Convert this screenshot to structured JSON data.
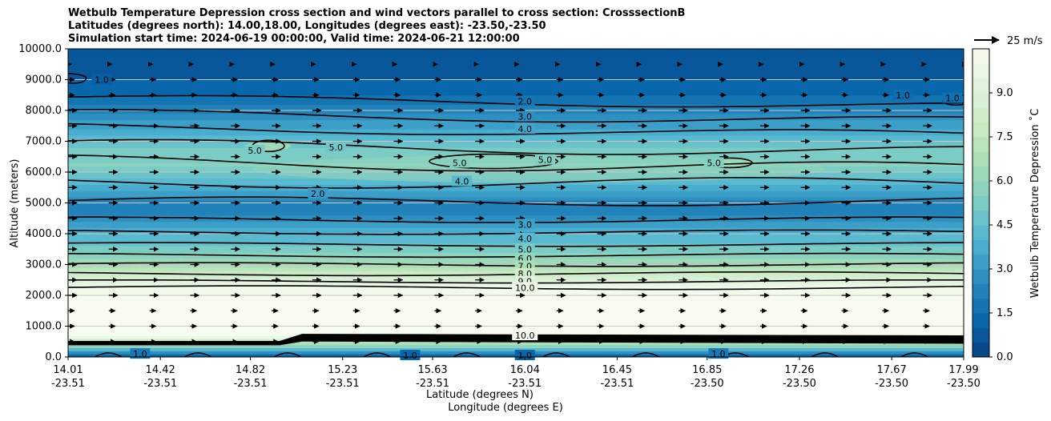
{
  "chart_data": {
    "type": "contourf",
    "title_lines": [
      "Wetbulb Temperature Depression cross section and wind vectors parallel to cross section: CrosssectionB",
      "Latitudes (degrees north): 14.00,18.00, Longitudes (degrees east): -23.50,-23.50",
      "Simulation start time: 2024-06-19 00:00:00, Valid time: 2024-06-21 12:00:00"
    ],
    "ylabel": "Altitude (meters)",
    "xlabel_lat": "Latitude (degrees N)",
    "xlabel_lon": "Longitude (degrees E)",
    "ylim": [
      0,
      10000
    ],
    "yticks": [
      "0.0",
      "1000.0",
      "2000.0",
      "3000.0",
      "4000.0",
      "5000.0",
      "6000.0",
      "7000.0",
      "8000.0",
      "9000.0",
      "10000.0"
    ],
    "x_range": [
      14.01,
      17.99
    ],
    "xticks": [
      {
        "lat": "14.01",
        "lon": "-23.51"
      },
      {
        "lat": "14.42",
        "lon": "-23.51"
      },
      {
        "lat": "14.82",
        "lon": "-23.51"
      },
      {
        "lat": "15.23",
        "lon": "-23.51"
      },
      {
        "lat": "15.63",
        "lon": "-23.51"
      },
      {
        "lat": "16.04",
        "lon": "-23.51"
      },
      {
        "lat": "16.45",
        "lon": "-23.51"
      },
      {
        "lat": "16.85",
        "lon": "-23.50"
      },
      {
        "lat": "17.26",
        "lon": "-23.50"
      },
      {
        "lat": "17.67",
        "lon": "-23.50"
      },
      {
        "lat": "17.99",
        "lon": "-23.50"
      }
    ],
    "grid": "horizontal",
    "colorbar": {
      "label": "Wetbulb Temperature Depression ˚C",
      "range": [
        0,
        10.5
      ],
      "ticks": [
        "0.0",
        "1.5",
        "3.0",
        "4.5",
        "6.0",
        "7.5",
        "9.0"
      ],
      "colormap": "GnBu_r"
    },
    "quiver_key": "25 m/s",
    "wind_vectors": "mostly eastward, roughly uniform",
    "field_profile": [
      {
        "altitude": 0,
        "value": 0.5
      },
      {
        "altitude": 700,
        "value": 10.5
      },
      {
        "altitude": 2000,
        "value": 10.5
      },
      {
        "altitude": 2300,
        "value": 10
      },
      {
        "altitude": 2600,
        "value": 8.5
      },
      {
        "altitude": 3000,
        "value": 6.5
      },
      {
        "altitude": 3400,
        "value": 5.5
      },
      {
        "altitude": 3800,
        "value": 4.3
      },
      {
        "altitude": 4200,
        "value": 3.6
      },
      {
        "altitude": 4600,
        "value": 2.5
      },
      {
        "altitude": 5000,
        "value": 2.2
      },
      {
        "altitude": 5400,
        "value": 3.5
      },
      {
        "altitude": 5800,
        "value": 4.5
      },
      {
        "altitude": 6200,
        "value": 5.6
      },
      {
        "altitude": 6700,
        "value": 5.2
      },
      {
        "altitude": 7100,
        "value": 4.2
      },
      {
        "altitude": 7500,
        "value": 3.3
      },
      {
        "altitude": 7900,
        "value": 2.5
      },
      {
        "altitude": 8300,
        "value": 1.8
      },
      {
        "altitude": 8700,
        "value": 1.1
      },
      {
        "altitude": 9200,
        "value": 0.9
      },
      {
        "altitude": 10000,
        "value": 0.8
      }
    ],
    "contour_labels": [
      {
        "lat": 16.04,
        "alt": 8300,
        "text": "2.0"
      },
      {
        "lat": 16.04,
        "alt": 7800,
        "text": "3.0"
      },
      {
        "lat": 16.04,
        "alt": 7400,
        "text": "4.0"
      },
      {
        "lat": 15.76,
        "alt": 5700,
        "text": "4.0"
      },
      {
        "lat": 16.04,
        "alt": 4300,
        "text": "3.0"
      },
      {
        "lat": 16.04,
        "alt": 3850,
        "text": "4.0"
      },
      {
        "lat": 16.04,
        "alt": 3500,
        "text": "5.0"
      },
      {
        "lat": 16.04,
        "alt": 3200,
        "text": "6.0"
      },
      {
        "lat": 16.04,
        "alt": 2950,
        "text": "7.0"
      },
      {
        "lat": 16.04,
        "alt": 2700,
        "text": "8.0"
      },
      {
        "lat": 16.04,
        "alt": 2450,
        "text": "9.0"
      },
      {
        "lat": 16.04,
        "alt": 2250,
        "text": "10.0"
      },
      {
        "lat": 16.04,
        "alt": 700,
        "text": "10.0"
      },
      {
        "lat": 14.16,
        "alt": 9000,
        "text": "1.0"
      },
      {
        "lat": 17.72,
        "alt": 8500,
        "text": "1.0"
      },
      {
        "lat": 17.94,
        "alt": 8400,
        "text": "1.0"
      },
      {
        "lat": 14.84,
        "alt": 6700,
        "text": "5.0"
      },
      {
        "lat": 15.2,
        "alt": 6800,
        "text": "5.0"
      },
      {
        "lat": 15.75,
        "alt": 6300,
        "text": "5.0"
      },
      {
        "lat": 16.13,
        "alt": 6400,
        "text": "5.0"
      },
      {
        "lat": 16.88,
        "alt": 6300,
        "text": "5.0"
      },
      {
        "lat": 15.12,
        "alt": 5300,
        "text": "2.0"
      },
      {
        "lat": 14.33,
        "alt": 100,
        "text": "1.0"
      },
      {
        "lat": 15.53,
        "alt": 50,
        "text": "1.0"
      },
      {
        "lat": 16.04,
        "alt": 50,
        "text": "1.0"
      },
      {
        "lat": 16.9,
        "alt": 100,
        "text": "1.0"
      }
    ]
  }
}
